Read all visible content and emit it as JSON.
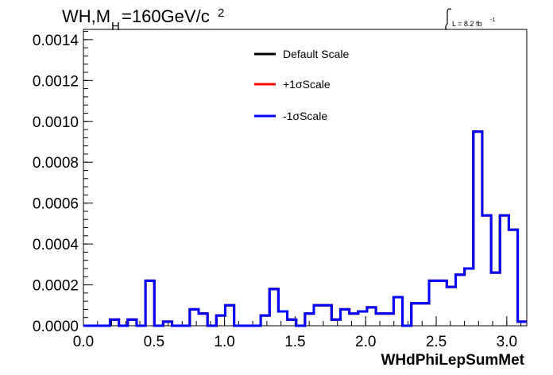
{
  "chart_data": {
    "type": "line",
    "title_main": "WH,M",
    "title_sub": "H",
    "title_rest": "=160GeV/c",
    "title_sup": "2",
    "lumi_label": "L = 8.2 fb",
    "lumi_sup": "-1",
    "xlabel": "WHdPhiLepSumMet",
    "ylabel": "",
    "xlim": [
      0.0,
      3.1416
    ],
    "ylim": [
      0.0,
      0.00145
    ],
    "x_ticks": [
      "0.0",
      "0.5",
      "1.0",
      "1.5",
      "2.0",
      "2.5",
      "3.0"
    ],
    "x_tick_values": [
      0.0,
      0.5,
      1.0,
      1.5,
      2.0,
      2.5,
      3.0
    ],
    "y_ticks": [
      "0.0000",
      "0.0002",
      "0.0004",
      "0.0006",
      "0.0008",
      "0.0010",
      "0.0012",
      "0.0014"
    ],
    "y_tick_values": [
      0.0,
      0.0002,
      0.0004,
      0.0006,
      0.0008,
      0.001,
      0.0012,
      0.0014
    ],
    "bin_width": 0.0628,
    "bin_edges_start": 0.0,
    "series": [
      {
        "name": "Default Scale",
        "color": "#000000"
      },
      {
        "name": "+1σScale",
        "color": "#ff0000"
      },
      {
        "name": "-1σScale",
        "color": "#0000ff"
      }
    ],
    "values": [
      0.0,
      0.0,
      0.0,
      3e-05,
      0.0,
      3e-05,
      0.0,
      0.00022,
      0.0,
      2e-05,
      0.0,
      0.0,
      8e-05,
      6e-05,
      0.0,
      5e-05,
      0.0001,
      0.0,
      0.0,
      0.0,
      5e-05,
      0.00018,
      7e-05,
      3e-05,
      0.0,
      6e-05,
      0.0001,
      0.0001,
      3e-05,
      8e-05,
      6e-05,
      7e-05,
      9e-05,
      6e-05,
      6e-05,
      0.00014,
      0.0,
      0.00011,
      0.00011,
      0.00022,
      0.00022,
      0.00019,
      0.00025,
      0.00028,
      0.00095,
      0.00054,
      0.00026,
      0.00054,
      0.00047,
      2e-05
    ]
  }
}
